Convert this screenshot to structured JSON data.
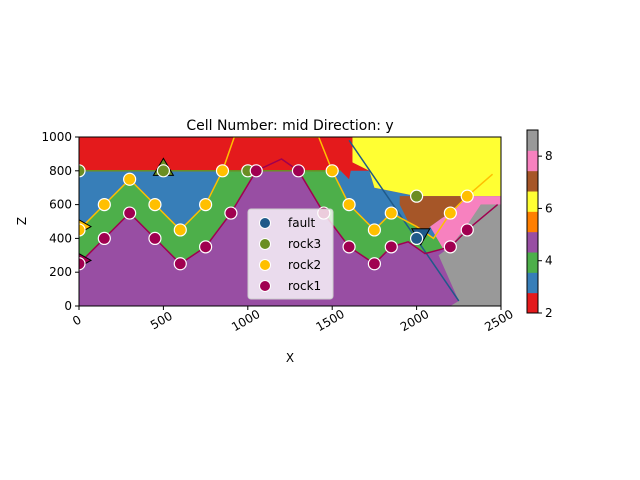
{
  "chart_data": {
    "type": "scatter",
    "title": "Cell Number: mid Direction: y",
    "xlabel": "X",
    "ylabel": "Z",
    "xlim": [
      0,
      2500
    ],
    "ylim": [
      0,
      1000
    ],
    "xticks": [
      "0",
      "500",
      "1000",
      "1500",
      "2000",
      "2500"
    ],
    "yticks": [
      "0",
      "200",
      "400",
      "600",
      "800",
      "1000"
    ],
    "colorbar": {
      "range": [
        2,
        9
      ],
      "ticks": [
        "2",
        "4",
        "6",
        "8"
      ],
      "colors": [
        "#e41a1c",
        "#377eb8",
        "#4daf4a",
        "#984ea3",
        "#ff7f00",
        "#ffff33",
        "#a65628",
        "#f781bf",
        "#999999"
      ]
    },
    "legend": {
      "placement": "lower-center",
      "entries": [
        {
          "name": "fault",
          "color": "#1f5a8a"
        },
        {
          "name": "rock3",
          "color": "#6b8e23"
        },
        {
          "name": "rock2",
          "color": "#ffbf00"
        },
        {
          "name": "rock1",
          "color": "#a00050"
        }
      ]
    },
    "series": [
      {
        "name": "fault",
        "color": "#1f5a8a",
        "points": [
          [
            2000,
            400
          ]
        ],
        "orientation_points": [
          [
            2025,
            410
          ]
        ],
        "line": [
          [
            1600,
            980
          ],
          [
            2250,
            30
          ]
        ]
      },
      {
        "name": "rock3",
        "color": "#6b8e23",
        "points": [
          [
            0,
            800
          ],
          [
            500,
            800
          ],
          [
            1000,
            800
          ],
          [
            2000,
            650
          ]
        ],
        "orientation_points": [
          [
            500,
            820
          ]
        ],
        "line": [
          [
            0,
            800
          ],
          [
            1050,
            800
          ],
          [
            1550,
            800
          ]
        ]
      },
      {
        "name": "rock2",
        "color": "#ffbf00",
        "points": [
          [
            0,
            450
          ],
          [
            150,
            600
          ],
          [
            300,
            750
          ],
          [
            450,
            600
          ],
          [
            600,
            450
          ],
          [
            750,
            600
          ],
          [
            850,
            800
          ],
          [
            1500,
            800
          ],
          [
            1600,
            600
          ],
          [
            1750,
            450
          ],
          [
            1850,
            550
          ],
          [
            2200,
            550
          ],
          [
            2300,
            650
          ]
        ],
        "orientation_points": [
          [
            0,
            470
          ]
        ],
        "line": [
          [
            0,
            450
          ],
          [
            150,
            600
          ],
          [
            300,
            750
          ],
          [
            450,
            600
          ],
          [
            600,
            450
          ],
          [
            750,
            600
          ],
          [
            850,
            800
          ],
          [
            920,
            1000
          ],
          [
            1420,
            1000
          ],
          [
            1500,
            800
          ],
          [
            1600,
            600
          ],
          [
            1750,
            450
          ],
          [
            1850,
            550
          ],
          [
            2000,
            470
          ],
          [
            2100,
            400
          ],
          [
            2200,
            550
          ],
          [
            2300,
            650
          ],
          [
            2450,
            780
          ]
        ]
      },
      {
        "name": "rock1",
        "color": "#a00050",
        "points": [
          [
            0,
            250
          ],
          [
            150,
            400
          ],
          [
            300,
            550
          ],
          [
            450,
            400
          ],
          [
            600,
            250
          ],
          [
            750,
            350
          ],
          [
            900,
            550
          ],
          [
            1050,
            800
          ],
          [
            1300,
            800
          ],
          [
            1450,
            550
          ],
          [
            1600,
            350
          ],
          [
            1750,
            250
          ],
          [
            1850,
            350
          ],
          [
            2200,
            350
          ],
          [
            2300,
            450
          ]
        ],
        "orientation_points": [
          [
            0,
            270
          ]
        ],
        "line": [
          [
            0,
            250
          ],
          [
            150,
            400
          ],
          [
            300,
            550
          ],
          [
            450,
            400
          ],
          [
            600,
            250
          ],
          [
            750,
            350
          ],
          [
            900,
            550
          ],
          [
            1050,
            800
          ],
          [
            1200,
            870
          ],
          [
            1300,
            800
          ],
          [
            1450,
            550
          ],
          [
            1600,
            350
          ],
          [
            1750,
            250
          ],
          [
            1850,
            350
          ],
          [
            1950,
            380
          ],
          [
            2050,
            310
          ],
          [
            2200,
            350
          ],
          [
            2300,
            450
          ],
          [
            2480,
            600
          ]
        ]
      }
    ],
    "regions": [
      {
        "unit": 9,
        "color": "#999999",
        "polygon": [
          [
            2200,
            0
          ],
          [
            2500,
            0
          ],
          [
            2500,
            600
          ],
          [
            2380,
            600
          ],
          [
            2300,
            480
          ],
          [
            2200,
            350
          ],
          [
            2130,
            300
          ],
          [
            2250,
            30
          ]
        ]
      },
      {
        "unit": 8,
        "color": "#f781bf",
        "polygon": [
          [
            2180,
            300
          ],
          [
            2300,
            450
          ],
          [
            2380,
            600
          ],
          [
            2500,
            600
          ],
          [
            2500,
            650
          ],
          [
            2300,
            650
          ],
          [
            2200,
            550
          ],
          [
            2150,
            520
          ],
          [
            2080,
            470
          ]
        ]
      },
      {
        "unit": 7,
        "color": "#a65628",
        "polygon": [
          [
            1900,
            650
          ],
          [
            2000,
            650
          ],
          [
            2500,
            650
          ],
          [
            2300,
            650
          ],
          [
            2200,
            550
          ],
          [
            2150,
            520
          ],
          [
            2080,
            470
          ],
          [
            2050,
            420
          ],
          [
            1950,
            500
          ],
          [
            1900,
            600
          ]
        ]
      },
      {
        "unit": 6,
        "color": "#ffff33",
        "polygon": [
          [
            1620,
            1000
          ],
          [
            2500,
            1000
          ],
          [
            2500,
            650
          ],
          [
            2000,
            650
          ],
          [
            1750,
            700
          ],
          [
            1720,
            800
          ],
          [
            1620,
            850
          ]
        ]
      }
    ],
    "grid": false
  }
}
